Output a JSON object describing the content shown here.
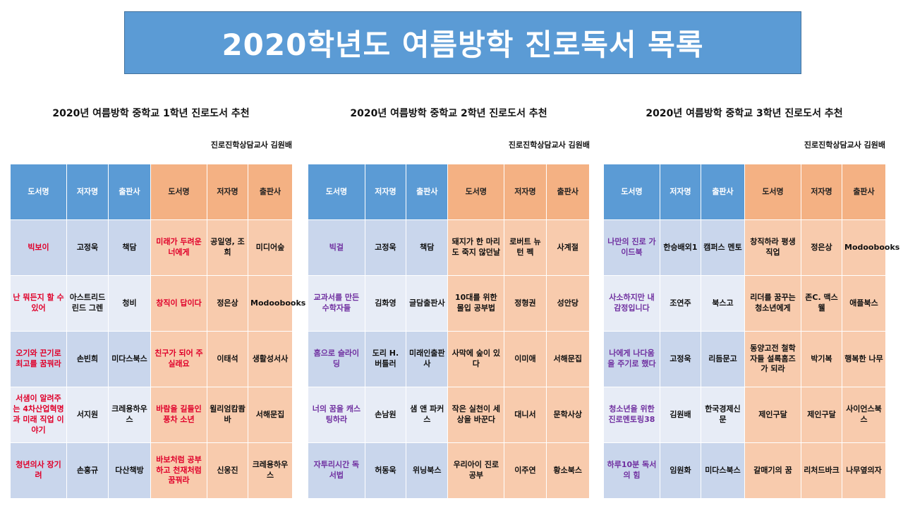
{
  "title": "2020학년도 여름방학 진로독서 목록",
  "headers": [
    "도서명",
    "저자명",
    "출판사",
    "도서명",
    "저자명",
    "출판사"
  ],
  "panels": [
    {
      "title": "2020년 여름방학 중학교 1학년 진로도서 추천",
      "teacher": "진로진학상담교사 김원배",
      "rows": [
        [
          "빅보이",
          "고정욱",
          "책담",
          "미래가 두려운 너에게",
          "공일영, 조희",
          "미디어숲"
        ],
        [
          "난 뭐든지 할 수 있어",
          "아스트리드 린드 그렌",
          "청비",
          "창직이 답이다",
          "정은상",
          "Modoobooks"
        ],
        [
          "오기와 끈기로 최고를 꿈꿔라",
          "손빈희",
          "미다스북스",
          "친구가 되어 주실래요",
          "이태석",
          "생활성서사"
        ],
        [
          "서샘이 알려주는 4차산업혁명과 미래 직업 이야기",
          "서지원",
          "크레용하우스",
          "바람을 길들인 풍차 소년",
          "윌리엄캄쾀바",
          "서해문집"
        ],
        [
          "청년의사 장기려",
          "손홍규",
          "다산책방",
          "바보처럼 공부하고 천재처럼 꿈꿔라",
          "신웅진",
          "크레용하우스"
        ]
      ]
    },
    {
      "title": "2020년 여름방학 중학교 2학년 진로도서 추천",
      "teacher": "진로진학상담교사 김원배",
      "rows": [
        [
          "빅걸",
          "고정욱",
          "책담",
          "돼지가 한 마리도 죽지 않던날",
          "로버트 뉴턴 펙",
          "사계절"
        ],
        [
          "교과서를 만든 수학자들",
          "김화영",
          "글담출판사",
          "10대를 위한 몰입 공부법",
          "정형권",
          "성안당"
        ],
        [
          "홈으로 슬라이딩",
          "도리 H. 버틀러",
          "미래인출판사",
          "사막에 숲이 있다",
          "이미애",
          "서해문집"
        ],
        [
          "너의 꿈을 캐스팅하라",
          "손남원",
          "샘 앤 파커스",
          "작은 실천이 세상을 바꾼다",
          "대니서",
          "문학사상"
        ],
        [
          "자투리시간 독서법",
          "허동욱",
          "위닝북스",
          "우리아이 진로공부",
          "이주연",
          "황소북스"
        ]
      ]
    },
    {
      "title": "2020년 여름방학 중학교 3학년 진로도서 추천",
      "teacher": "진로진학상담교사 김원배",
      "rows": [
        [
          "나만의 진로 가이드북",
          "한승배외1",
          "캠퍼스 멘토",
          "창직하라 평생직업",
          "정은상",
          "Modoobooks"
        ],
        [
          "사소하지만 내 감정입니다",
          "조연주",
          "북스고",
          "리더를 꿈꾸는 청소년에게",
          "존C. 맥스웰",
          "애플북스"
        ],
        [
          "나에게 나다움을 주기로 했다",
          "고정욱",
          "리듬문고",
          "동양고전 철학자들 설록홈즈가 되라",
          "박기복",
          "행복한 나무"
        ],
        [
          "청소년을 위한 진로멘토링38",
          "김원배",
          "한국경제신문",
          "제인구달",
          "제인구달",
          "사이언스북스"
        ],
        [
          "하루10분 독서의 힘",
          "임원화",
          "미다스북스",
          "갈매기의 꿈",
          "리처드바크",
          "나무옆의자"
        ]
      ]
    }
  ],
  "colors": {
    "banner": "#5b9bd5",
    "header_blue": "#5b9bd5",
    "header_orange": "#f4b183",
    "cell_orange": "#f8cbad",
    "cell_blue": "#c9d6ec",
    "title_red": "#e0002a",
    "title_purple": "#7030a0"
  }
}
